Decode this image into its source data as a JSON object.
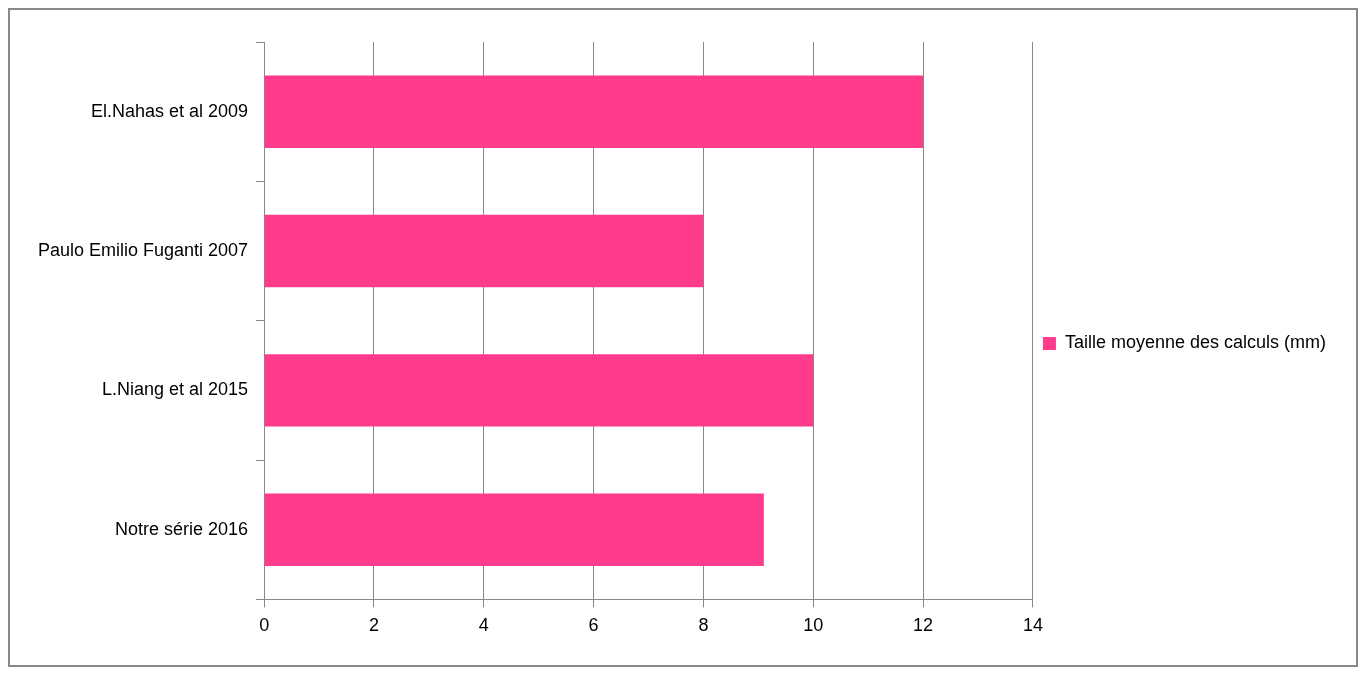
{
  "chart_data": {
    "type": "bar",
    "orientation": "horizontal",
    "categories": [
      "El.Nahas et al 2009",
      "Paulo Emilio Fuganti 2007",
      "L.Niang et al 2015",
      "Notre série 2016"
    ],
    "series": [
      {
        "name": "Taille moyenne des calculs (mm)",
        "color": "#ff3b8b",
        "values": [
          12,
          8,
          10,
          9.1
        ]
      }
    ],
    "xlim": [
      0,
      14
    ],
    "xticks": [
      0,
      2,
      4,
      6,
      8,
      10,
      12,
      14
    ],
    "grid": "x",
    "legend": "right"
  }
}
